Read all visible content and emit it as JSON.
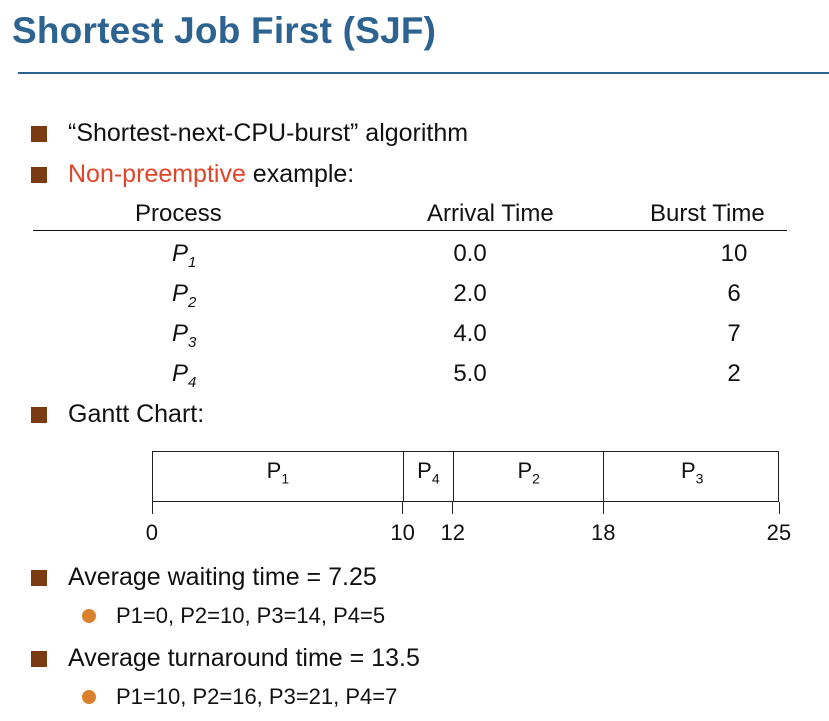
{
  "slide": {
    "title": "Shortest Job First (SJF)"
  },
  "bullets": {
    "b1": "“Shortest-next-CPU-burst” algorithm",
    "b2_red": "Non-preemptive",
    "b2_rest": " example:",
    "b3": "Gantt Chart:",
    "b4": "Average waiting time = 7.25",
    "b4_sub": "P1=0, P2=10, P3=14, P4=5",
    "b5": "Average turnaround time = 13.5",
    "b5_sub": "P1=10, P2=16, P3=21, P4=7"
  },
  "table": {
    "headers": [
      "Process",
      "Arrival Time",
      "Burst Time"
    ],
    "rows": [
      {
        "p": "P",
        "sub": "1",
        "arrival": "0.0",
        "burst": "10"
      },
      {
        "p": "P",
        "sub": "2",
        "arrival": "2.0",
        "burst": "6"
      },
      {
        "p": "P",
        "sub": "3",
        "arrival": "4.0",
        "burst": "7"
      },
      {
        "p": "P",
        "sub": "4",
        "arrival": "5.0",
        "burst": "2"
      }
    ]
  },
  "gantt": {
    "segments": [
      {
        "p": "P",
        "sub": "1",
        "start": 0,
        "end": 10
      },
      {
        "p": "P",
        "sub": "4",
        "start": 10,
        "end": 12
      },
      {
        "p": "P",
        "sub": "2",
        "start": 12,
        "end": 18
      },
      {
        "p": "P",
        "sub": "3",
        "start": 18,
        "end": 25
      }
    ],
    "ticks": [
      "0",
      "10",
      "12",
      "18",
      "25"
    ]
  },
  "colors": {
    "title": "#2d6390",
    "bullet": "#7a3a12",
    "highlight": "#e0452a",
    "sub_bullet": "#d9812f"
  }
}
